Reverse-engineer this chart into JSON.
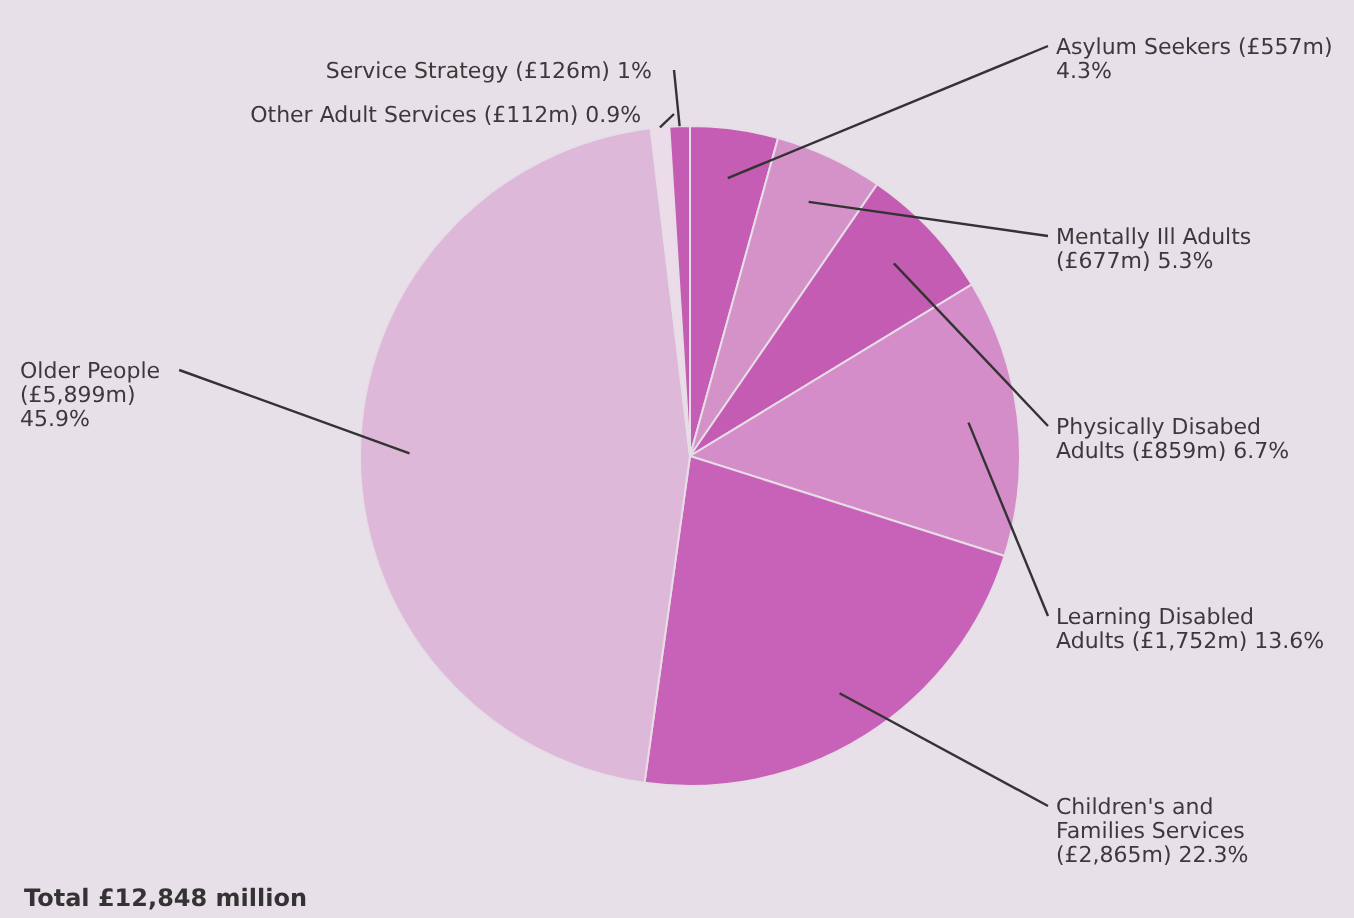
{
  "chart_data": {
    "type": "pie",
    "categories": [
      "Asylum Seekers (£557m) 4.3%",
      "Mentally Ill Adults (£677m) 5.3%",
      "Physically Disabed Adults (£859m) 6.7%",
      "Learning Disabled Adults (£1,752m) 13.6%",
      "Children's and Families Services (£2,865m) 22.3%",
      "Older People (£5,899m) 45.9%",
      "Other Adult Services (£112m) 0.9%",
      "Service Strategy (£126m) 1%"
    ],
    "values": [
      4.3,
      5.3,
      6.7,
      13.6,
      22.3,
      45.9,
      0.9,
      1
    ],
    "colors": [
      "#c65db4",
      "#d492c9",
      "#c45cb3",
      "#d58dc9",
      "#c862b8",
      "#ddb8d9",
      "#ecdcea",
      "#c45cb3"
    ],
    "annotations": [
      "Total £12,848 million"
    ]
  }
}
